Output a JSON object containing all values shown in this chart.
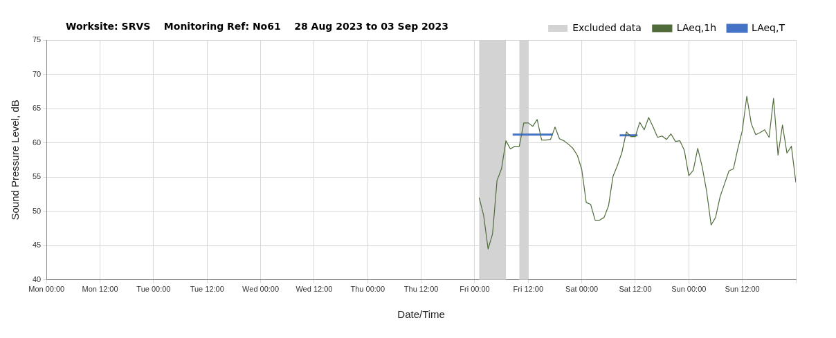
{
  "chart_data": {
    "type": "line",
    "title": "Worksite: SRVS    Monitoring Ref: No61    28 Aug 2023 to 03 Sep 2023",
    "xlabel": "Date/Time",
    "ylabel": "Sound Pressure Level, dB",
    "xlim": [
      "2023-08-28T00:00",
      "2023-09-04T00:00"
    ],
    "xticks": [
      {
        "value": "2023-08-28T00:00",
        "label": "Mon 00:00"
      },
      {
        "value": "2023-08-28T12:00",
        "label": "Mon 12:00"
      },
      {
        "value": "2023-08-29T00:00",
        "label": "Tue 00:00"
      },
      {
        "value": "2023-08-29T12:00",
        "label": "Tue 12:00"
      },
      {
        "value": "2023-08-30T00:00",
        "label": "Wed 00:00"
      },
      {
        "value": "2023-08-30T12:00",
        "label": "Wed 12:00"
      },
      {
        "value": "2023-08-31T00:00",
        "label": "Thu 00:00"
      },
      {
        "value": "2023-08-31T12:00",
        "label": "Thu 12:00"
      },
      {
        "value": "2023-09-01T00:00",
        "label": "Fri 00:00"
      },
      {
        "value": "2023-09-01T12:00",
        "label": "Fri 12:00"
      },
      {
        "value": "2023-09-02T00:00",
        "label": "Sat 00:00"
      },
      {
        "value": "2023-09-02T12:00",
        "label": "Sat 12:00"
      },
      {
        "value": "2023-09-03T00:00",
        "label": "Sun 00:00"
      },
      {
        "value": "2023-09-03T12:00",
        "label": "Sun 12:00"
      },
      {
        "value": "2023-09-04T00:00",
        "label": null
      }
    ],
    "ylim": [
      40,
      75
    ],
    "yticks": [
      40,
      45,
      50,
      55,
      60,
      65,
      70,
      75
    ],
    "grid": true,
    "legend": "top right",
    "marker": "none",
    "bands": [
      {
        "axis": "x",
        "from": "2023-09-01T01:00",
        "to": "2023-09-01T07:00",
        "label": "Excluded data",
        "color": "#d3d3d3"
      },
      {
        "axis": "x",
        "from": "2023-09-01T10:00",
        "to": "2023-09-01T12:00",
        "color": "#d3d3d3"
      }
    ],
    "series": [
      {
        "name": "LAeq,1h",
        "color": "#4f6b3a",
        "type": "line",
        "x": [
          "2023-09-01T01:00",
          "2023-09-01T02:00",
          "2023-09-01T03:00",
          "2023-09-01T04:00",
          "2023-09-01T05:00",
          "2023-09-01T06:00",
          "2023-09-01T07:00",
          "2023-09-01T08:00",
          "2023-09-01T09:00",
          "2023-09-01T10:00",
          "2023-09-01T11:00",
          "2023-09-01T12:00",
          "2023-09-01T13:00",
          "2023-09-01T14:00",
          "2023-09-01T15:00",
          "2023-09-01T16:00",
          "2023-09-01T17:00",
          "2023-09-01T18:00",
          "2023-09-01T19:00",
          "2023-09-01T20:00",
          "2023-09-01T21:00",
          "2023-09-01T22:00",
          "2023-09-01T23:00",
          "2023-09-02T00:00",
          "2023-09-02T01:00",
          "2023-09-02T02:00",
          "2023-09-02T03:00",
          "2023-09-02T04:00",
          "2023-09-02T05:00",
          "2023-09-02T06:00",
          "2023-09-02T07:00",
          "2023-09-02T08:00",
          "2023-09-02T09:00",
          "2023-09-02T10:00",
          "2023-09-02T11:00",
          "2023-09-02T12:00",
          "2023-09-02T13:00",
          "2023-09-02T14:00",
          "2023-09-02T15:00",
          "2023-09-02T16:00",
          "2023-09-02T17:00",
          "2023-09-02T18:00",
          "2023-09-02T19:00",
          "2023-09-02T20:00",
          "2023-09-02T21:00",
          "2023-09-02T22:00",
          "2023-09-02T23:00",
          "2023-09-03T00:00",
          "2023-09-03T01:00",
          "2023-09-03T02:00",
          "2023-09-03T03:00",
          "2023-09-03T04:00",
          "2023-09-03T05:00",
          "2023-09-03T06:00",
          "2023-09-03T07:00",
          "2023-09-03T08:00",
          "2023-09-03T09:00",
          "2023-09-03T10:00",
          "2023-09-03T11:00",
          "2023-09-03T12:00",
          "2023-09-03T13:00",
          "2023-09-03T14:00",
          "2023-09-03T15:00",
          "2023-09-03T16:00",
          "2023-09-03T17:00",
          "2023-09-03T18:00",
          "2023-09-03T19:00",
          "2023-09-03T20:00",
          "2023-09-03T21:00",
          "2023-09-03T22:00",
          "2023-09-03T23:00",
          "2023-09-04T00:00"
        ],
        "values": [
          52.0,
          49.4,
          44.5,
          46.7,
          54.5,
          56.2,
          60.3,
          59.1,
          59.5,
          59.5,
          62.9,
          62.9,
          62.4,
          63.4,
          60.4,
          60.4,
          60.5,
          62.3,
          60.6,
          60.3,
          59.8,
          59.2,
          58.2,
          56.1,
          51.3,
          51.0,
          48.7,
          48.7,
          49.1,
          50.8,
          55.1,
          56.7,
          58.6,
          61.6,
          60.9,
          60.9,
          63.0,
          61.9,
          63.7,
          62.3,
          60.8,
          61.0,
          60.5,
          61.3,
          60.2,
          60.3,
          58.9,
          55.2,
          56.0,
          59.2,
          56.5,
          52.9,
          48.0,
          49.1,
          52.1,
          54.0,
          55.9,
          56.2,
          59.2,
          61.8,
          66.8,
          62.8,
          61.2,
          61.5,
          61.9,
          60.8,
          66.5,
          58.2,
          62.6,
          58.5,
          59.5,
          54.2
        ]
      },
      {
        "name": "LAeq,T",
        "color": "#4472c4",
        "type": "line",
        "x": [
          "2023-09-01T08:30",
          "2023-09-01T17:30",
          "2023-09-02T01:00",
          "2023-09-02T08:30",
          "2023-09-02T12:30"
        ],
        "values": [
          61.2,
          61.2,
          null,
          61.1,
          61.1
        ]
      }
    ]
  }
}
